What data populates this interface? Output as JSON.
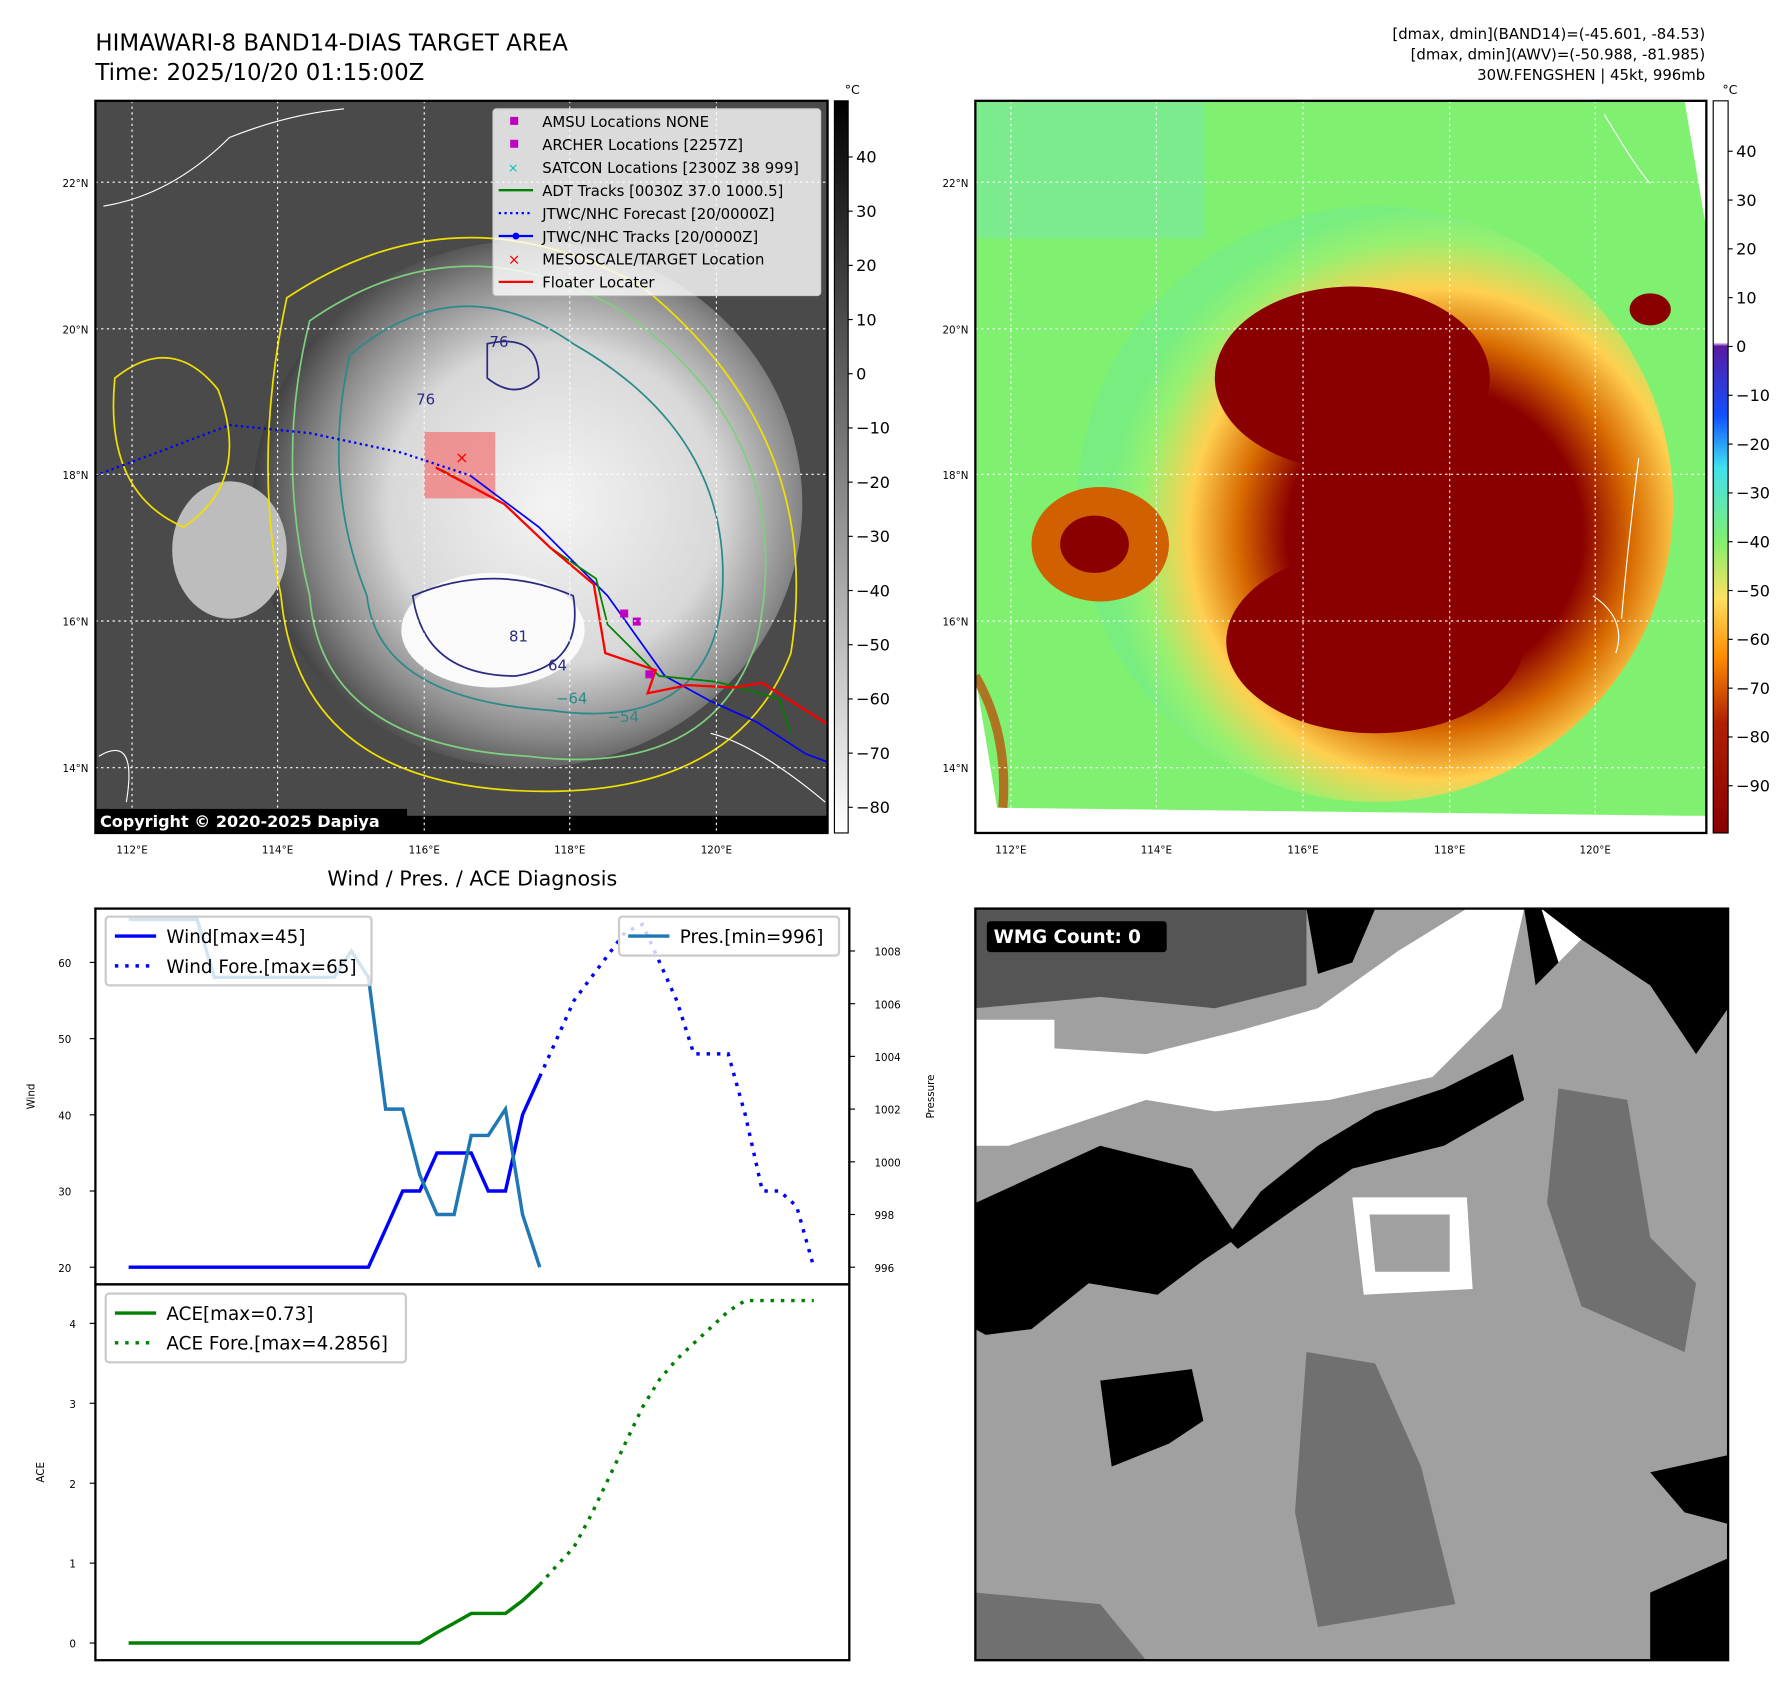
{
  "header": {
    "title": "HIMAWARI-8 BAND14-DIAS TARGET AREA",
    "time": "Time: 2025/10/20 01:15:00Z",
    "info_line1": "[dmax, dmin](BAND14)=(-45.601, -84.53)",
    "info_line2": "[dmax, dmin](AWV)=(-50.988, -81.985)",
    "info_line3": "30W.FENGSHEN | 45kt, 996mb"
  },
  "maps": {
    "lat_labels": [
      "22°N",
      "20°N",
      "18°N",
      "16°N",
      "14°N"
    ],
    "lon_labels": [
      "112°E",
      "114°E",
      "116°E",
      "118°E",
      "120°E"
    ],
    "copyright": "Copyright © 2020-2025 Dapiya",
    "unit": "°C",
    "left_colorbar_ticks": [
      "40",
      "30",
      "20",
      "10",
      "0",
      "−10",
      "−20",
      "−30",
      "−40",
      "−50",
      "−60",
      "−70",
      "−80"
    ],
    "right_colorbar_ticks": [
      "40",
      "30",
      "20",
      "10",
      "0",
      "−10",
      "−20",
      "−30",
      "−40",
      "−50",
      "−60",
      "−70",
      "−80",
      "−90"
    ],
    "contour_labels": [
      "76",
      "76",
      "81",
      "−64",
      "−54",
      "64"
    ],
    "legend": [
      {
        "label": "AMSU Locations NONE",
        "color": "#c000c0"
      },
      {
        "label": "ARCHER Locations [2257Z]",
        "color": "#c000c0"
      },
      {
        "label": "SATCON Locations [2300Z 38 999]",
        "color": "#00c0c0"
      },
      {
        "label": "ADT Tracks [0030Z 37.0 1000.5]",
        "color": "#008000"
      },
      {
        "label": "JTWC/NHC Forecast [20/0000Z]",
        "color": "#0000ff"
      },
      {
        "label": "JTWC/NHC Tracks [20/0000Z]",
        "color": "#0000ff"
      },
      {
        "label": "MESOSCALE/TARGET Location",
        "color": "#ff0000"
      },
      {
        "label": "Floater Locater",
        "color": "#ff0000"
      }
    ]
  },
  "wmg": {
    "label": "WMG Count: 0"
  },
  "chart_data": [
    {
      "type": "line",
      "title": "Wind / Pres. / ACE Diagnosis",
      "ylabel": "Wind",
      "y2label": "Pressure",
      "ylim": [
        18.5,
        67
      ],
      "y2lim": [
        995.3,
        1009.6
      ],
      "yticks": [
        "20",
        "30",
        "40",
        "50",
        "60"
      ],
      "y2ticks": [
        "996",
        "998",
        "1000",
        "1002",
        "1004",
        "1006",
        "1008"
      ],
      "x_steps": 41,
      "series": [
        {
          "name": "Wind[max=45]",
          "style": "solid",
          "color": "#0000ff",
          "x_start": 0,
          "values": [
            20,
            20,
            20,
            20,
            20,
            20,
            20,
            20,
            20,
            20,
            20,
            20,
            20,
            20,
            20,
            25,
            30,
            30,
            35,
            35,
            35,
            30,
            30,
            40,
            45
          ]
        },
        {
          "name": "Wind Fore.[max=65]",
          "style": "dotted",
          "color": "#0000ff",
          "x_start": 24,
          "values": [
            45,
            50,
            55,
            58,
            61,
            64,
            65,
            60,
            55,
            48,
            48,
            48,
            40,
            30,
            30,
            28,
            20
          ]
        },
        {
          "name": "Pres.[min=996]",
          "style": "solid",
          "color": "#1f77b4",
          "axis": "right",
          "x_start": 0,
          "values": [
            1009.2,
            1009.2,
            1009.2,
            1009.2,
            1009.2,
            1007,
            1007,
            1007,
            1007,
            1007,
            1007,
            1007,
            1007,
            1008,
            1007,
            1002,
            1002,
            999.5,
            998,
            998,
            1001,
            1001,
            1002,
            998,
            996
          ]
        }
      ]
    },
    {
      "type": "line",
      "ylabel": "ACE",
      "ylim": [
        -0.2,
        4.5
      ],
      "yticks": [
        "0",
        "1",
        "2",
        "3",
        "4"
      ],
      "x_steps": 41,
      "series": [
        {
          "name": "ACE[max=0.73]",
          "style": "solid",
          "color": "#008000",
          "x_start": 0,
          "values": [
            0,
            0,
            0,
            0,
            0,
            0,
            0,
            0,
            0,
            0,
            0,
            0,
            0,
            0,
            0,
            0,
            0,
            0,
            0.13,
            0.25,
            0.37,
            0.37,
            0.37,
            0.53,
            0.73
          ]
        },
        {
          "name": "ACE Fore.[max=4.2856]",
          "style": "dotted",
          "color": "#008000",
          "x_start": 24,
          "values": [
            0.73,
            0.97,
            1.2,
            1.6,
            2.05,
            2.5,
            2.95,
            3.3,
            3.55,
            3.75,
            3.95,
            4.15,
            4.2856,
            4.2856,
            4.2856,
            4.2856,
            4.2856
          ]
        }
      ]
    }
  ]
}
